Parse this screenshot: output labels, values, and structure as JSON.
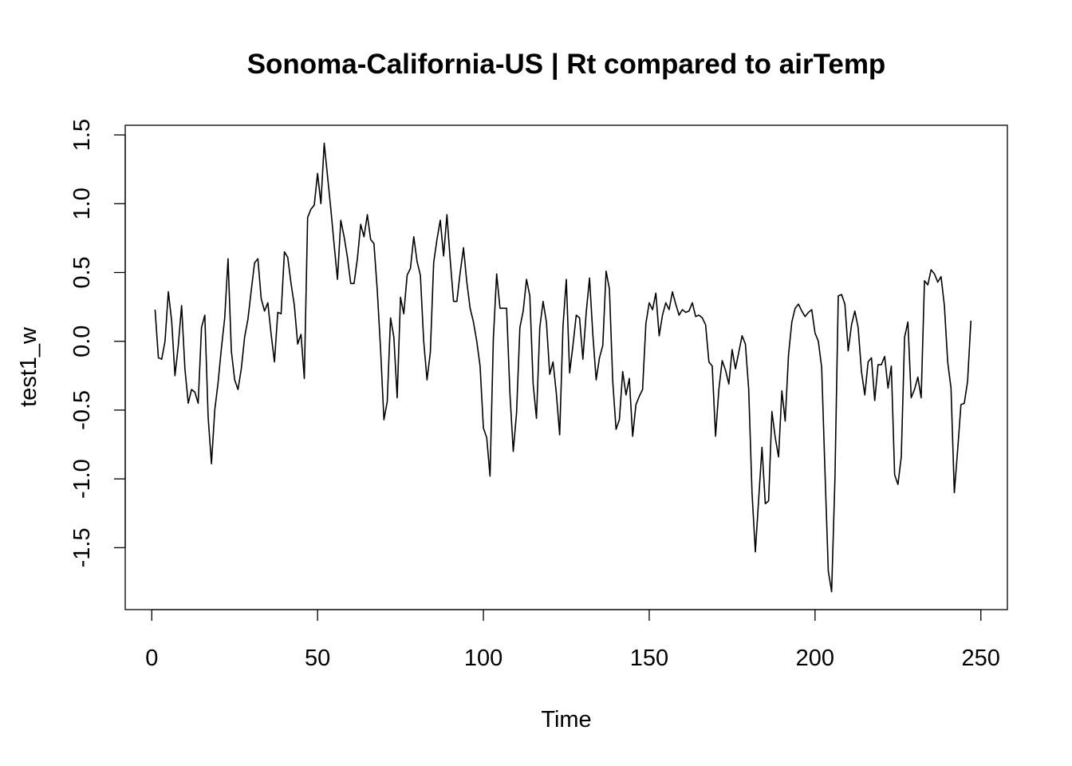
{
  "chart_data": {
    "type": "line",
    "title": "Sonoma-California-US | Rt compared to airTemp",
    "xlabel": "Time",
    "ylabel": "test1_w",
    "xlim": [
      -8,
      258
    ],
    "ylim": [
      -1.95,
      1.57
    ],
    "x_ticks": [
      0,
      50,
      100,
      150,
      200,
      250
    ],
    "x_tick_labels": [
      "0",
      "50",
      "100",
      "150",
      "200",
      "250"
    ],
    "y_ticks": [
      -1.5,
      -1.0,
      -0.5,
      0.0,
      0.5,
      1.0,
      1.5
    ],
    "y_tick_labels": [
      "-1.5",
      "-1.0",
      "-0.5",
      "0.0",
      "0.5",
      "1.0",
      "1.5"
    ],
    "grid": false,
    "series": [
      {
        "color": "#000000",
        "x_start": 1,
        "values": [
          0.23,
          -0.12,
          -0.13,
          0.0,
          0.36,
          0.15,
          -0.25,
          -0.03,
          0.26,
          -0.2,
          -0.45,
          -0.35,
          -0.37,
          -0.45,
          0.1,
          0.19,
          -0.55,
          -0.89,
          -0.5,
          -0.3,
          -0.05,
          0.17,
          0.6,
          -0.07,
          -0.28,
          -0.35,
          -0.2,
          0.03,
          0.16,
          0.37,
          0.57,
          0.6,
          0.31,
          0.22,
          0.28,
          0.05,
          -0.15,
          0.21,
          0.2,
          0.65,
          0.61,
          0.42,
          0.26,
          -0.02,
          0.05,
          -0.27,
          0.9,
          0.96,
          0.99,
          1.22,
          1.0,
          1.44,
          1.2,
          0.96,
          0.7,
          0.45,
          0.88,
          0.76,
          0.61,
          0.42,
          0.42,
          0.6,
          0.85,
          0.76,
          0.92,
          0.74,
          0.71,
          0.37,
          -0.06,
          -0.57,
          -0.44,
          0.17,
          0.03,
          -0.41,
          0.32,
          0.2,
          0.48,
          0.53,
          0.76,
          0.58,
          0.48,
          0.0,
          -0.28,
          -0.08,
          0.57,
          0.74,
          0.88,
          0.62,
          0.92,
          0.59,
          0.29,
          0.29,
          0.5,
          0.68,
          0.43,
          0.24,
          0.14,
          0.0,
          -0.18,
          -0.63,
          -0.7,
          -0.98,
          0.02,
          0.49,
          0.24,
          0.24,
          0.24,
          -0.38,
          -0.8,
          -0.52,
          0.1,
          0.22,
          0.45,
          0.33,
          -0.31,
          -0.56,
          0.1,
          0.29,
          0.14,
          -0.24,
          -0.15,
          -0.38,
          -0.68,
          0.11,
          0.45,
          -0.23,
          -0.03,
          0.19,
          0.17,
          -0.13,
          0.21,
          0.46,
          0.05,
          -0.28,
          -0.12,
          -0.03,
          0.51,
          0.38,
          -0.29,
          -0.64,
          -0.57,
          -0.22,
          -0.39,
          -0.27,
          -0.69,
          -0.46,
          -0.4,
          -0.35,
          0.13,
          0.28,
          0.23,
          0.35,
          0.04,
          0.19,
          0.28,
          0.23,
          0.36,
          0.27,
          0.19,
          0.23,
          0.21,
          0.22,
          0.28,
          0.18,
          0.19,
          0.17,
          0.12,
          -0.15,
          -0.18,
          -0.69,
          -0.35,
          -0.14,
          -0.21,
          -0.31,
          -0.06,
          -0.2,
          -0.08,
          0.04,
          -0.02,
          -0.35,
          -1.1,
          -1.53,
          -1.15,
          -0.77,
          -1.18,
          -1.16,
          -0.51,
          -0.7,
          -0.84,
          -0.36,
          -0.58,
          -0.1,
          0.14,
          0.24,
          0.27,
          0.22,
          0.18,
          0.21,
          0.23,
          0.06,
          0.0,
          -0.19,
          -0.95,
          -1.67,
          -1.82,
          -1.0,
          0.33,
          0.34,
          0.27,
          -0.07,
          0.12,
          0.22,
          0.1,
          -0.22,
          -0.39,
          -0.15,
          -0.12,
          -0.43,
          -0.17,
          -0.17,
          -0.11,
          -0.34,
          -0.18,
          -0.97,
          -1.04,
          -0.84,
          0.03,
          0.14,
          -0.41,
          -0.35,
          -0.26,
          -0.41,
          0.44,
          0.41,
          0.52,
          0.49,
          0.43,
          0.47,
          0.26,
          -0.15,
          -0.34,
          -1.1,
          -0.79,
          -0.46,
          -0.45,
          -0.29,
          0.15
        ]
      }
    ]
  }
}
